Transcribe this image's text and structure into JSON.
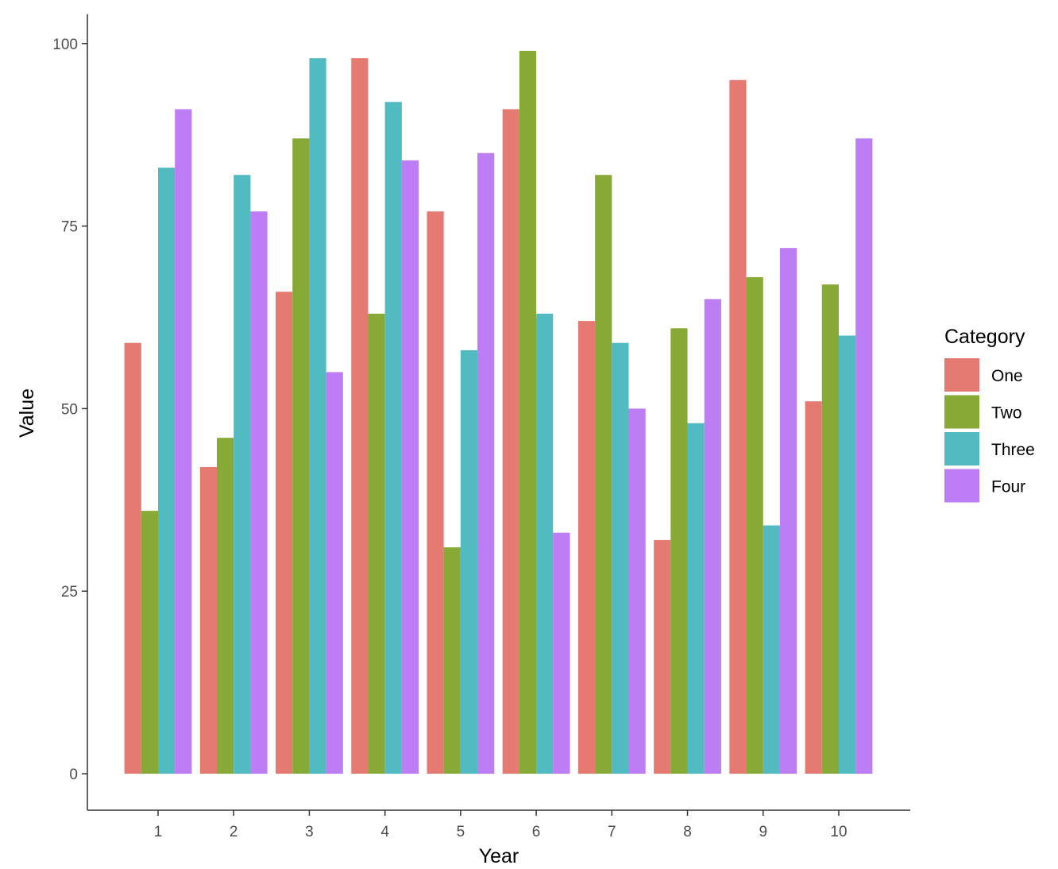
{
  "chart_data": {
    "type": "bar",
    "title": "",
    "xlabel": "Year",
    "ylabel": "Value",
    "categories": [
      "1",
      "2",
      "3",
      "4",
      "5",
      "6",
      "7",
      "8",
      "9",
      "10"
    ],
    "yticks": [
      0,
      25,
      50,
      75,
      100
    ],
    "ylim": [
      -5,
      104
    ],
    "legend": {
      "title": "Category",
      "position": "right"
    },
    "series": [
      {
        "name": "One",
        "color": "#E57A72",
        "values": [
          59,
          42,
          66,
          98,
          77,
          91,
          62,
          32,
          95,
          51
        ]
      },
      {
        "name": "Two",
        "color": "#87A936",
        "values": [
          36,
          46,
          87,
          63,
          31,
          99,
          82,
          61,
          68,
          67
        ]
      },
      {
        "name": "Three",
        "color": "#52BBC1",
        "values": [
          83,
          82,
          98,
          92,
          58,
          63,
          59,
          48,
          34,
          60
        ]
      },
      {
        "name": "Four",
        "color": "#BC7DF5",
        "values": [
          91,
          77,
          55,
          84,
          85,
          33,
          50,
          65,
          72,
          87
        ]
      }
    ]
  }
}
